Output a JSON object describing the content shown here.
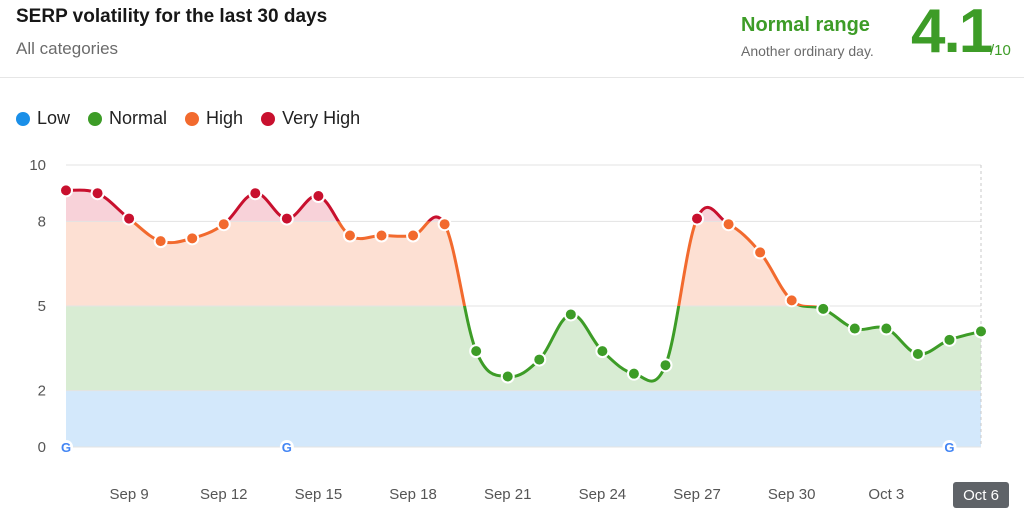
{
  "header": {
    "title": "SERP volatility for the last 30 days",
    "subtitle": "All categories",
    "range_label": "Normal range",
    "range_description": "Another ordinary day.",
    "score": "4.1",
    "score_denominator": "/10"
  },
  "colors": {
    "low": "#1a8fe8",
    "normal": "#3d9c27",
    "high": "#f26a2e",
    "very_high": "#c8102e",
    "low_fill": "#d3e8fb",
    "normal_fill": "#d8ecd3",
    "high_fill": "#fde0d3",
    "very_high_fill": "#f8d2d9"
  },
  "legend": [
    {
      "label": "Low",
      "key": "low"
    },
    {
      "label": "Normal",
      "key": "normal"
    },
    {
      "label": "High",
      "key": "high"
    },
    {
      "label": "Very High",
      "key": "very_high"
    }
  ],
  "chart_data": {
    "type": "line",
    "ylim": [
      0,
      10
    ],
    "y_ticks": [
      0,
      2,
      5,
      8,
      10
    ],
    "bands": [
      {
        "level": "low",
        "from": 0,
        "to": 2
      },
      {
        "level": "normal",
        "from": 2,
        "to": 5
      },
      {
        "level": "high",
        "from": 5,
        "to": 8
      },
      {
        "level": "very_high",
        "from": 8,
        "to": 10
      }
    ],
    "x": [
      "Sep 7",
      "Sep 8",
      "Sep 9",
      "Sep 10",
      "Sep 11",
      "Sep 12",
      "Sep 13",
      "Sep 14",
      "Sep 15",
      "Sep 16",
      "Sep 17",
      "Sep 18",
      "Sep 19",
      "Sep 20",
      "Sep 21",
      "Sep 22",
      "Sep 23",
      "Sep 24",
      "Sep 25",
      "Sep 26",
      "Sep 27",
      "Sep 28",
      "Sep 29",
      "Sep 30",
      "Oct 1",
      "Oct 2",
      "Oct 3",
      "Oct 4",
      "Oct 5",
      "Oct 6"
    ],
    "values": [
      9.1,
      9.0,
      8.1,
      7.3,
      7.4,
      7.9,
      9.0,
      8.1,
      8.9,
      7.5,
      7.5,
      7.5,
      7.9,
      3.4,
      2.5,
      3.1,
      4.7,
      3.4,
      2.6,
      2.9,
      8.1,
      7.9,
      6.9,
      5.2,
      4.9,
      4.2,
      4.2,
      3.3,
      3.8,
      4.1
    ],
    "x_tick_labels": [
      "Sep 9",
      "Sep 12",
      "Sep 15",
      "Sep 18",
      "Sep 21",
      "Sep 24",
      "Sep 27",
      "Sep 30",
      "Oct 3",
      "Oct 6"
    ],
    "x_tick_indices": [
      2,
      5,
      8,
      11,
      14,
      17,
      20,
      23,
      26,
      29
    ],
    "highlighted_label": "Oct 6",
    "google_update_indices": [
      0,
      7,
      28
    ],
    "google_icon": "G"
  }
}
